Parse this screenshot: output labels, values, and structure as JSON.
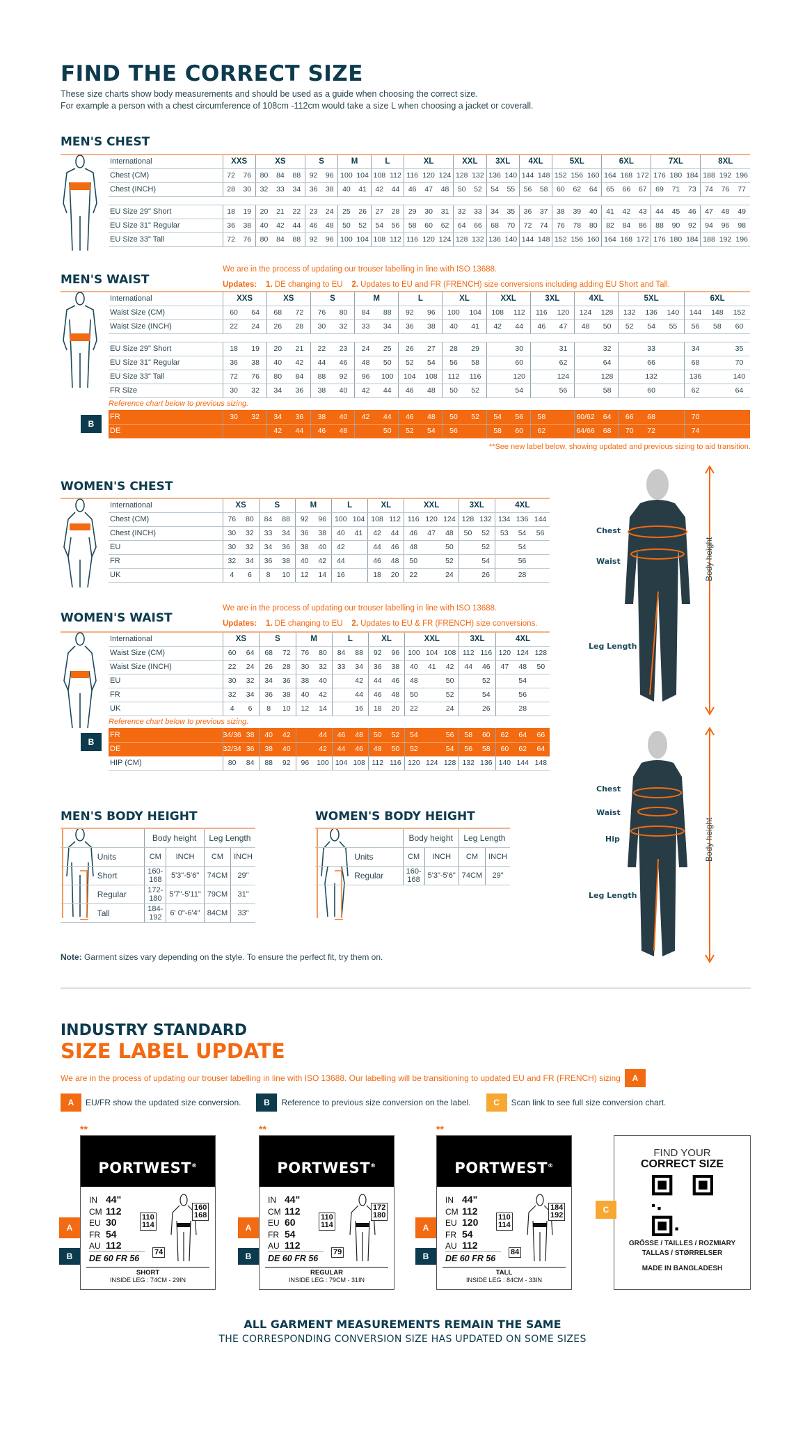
{
  "header": {
    "title": "FIND THE CORRECT SIZE",
    "intro_1": "These size charts show body measurements and should be used as a guide when choosing the correct size.",
    "intro_2": "For example a person with a chest circumference of 108cm -112cm would take a size L when choosing a jacket or coverall."
  },
  "colors": {
    "accent": "#f26a12",
    "navy": "#0d3b4e",
    "badge_c": "#f7a833"
  },
  "mens_chest": {
    "title": "MEN'S CHEST",
    "sizes": [
      {
        "label": "XXS",
        "span": 2
      },
      {
        "label": "XS",
        "span": 3
      },
      {
        "label": "S",
        "span": 2
      },
      {
        "label": "M",
        "span": 2
      },
      {
        "label": "L",
        "span": 2
      },
      {
        "label": "XL",
        "span": 3
      },
      {
        "label": "XXL",
        "span": 2
      },
      {
        "label": "3XL",
        "span": 2
      },
      {
        "label": "4XL",
        "span": 2
      },
      {
        "label": "5XL",
        "span": 3
      },
      {
        "label": "6XL",
        "span": 3
      },
      {
        "label": "7XL",
        "span": 3
      },
      {
        "label": "8XL",
        "span": 3
      }
    ],
    "header_label": "International",
    "rows": [
      {
        "label": "Chest (CM)",
        "cells": [
          "72",
          "76",
          "80",
          "84",
          "88",
          "92",
          "96",
          "100",
          "104",
          "108",
          "112",
          "116",
          "120",
          "124",
          "128",
          "132",
          "136",
          "140",
          "144",
          "148",
          "152",
          "156",
          "160",
          "164",
          "168",
          "172",
          "176",
          "180",
          "184",
          "188",
          "192",
          "196"
        ]
      },
      {
        "label": "Chest (INCH)",
        "cells": [
          "28",
          "30",
          "32",
          "33",
          "34",
          "36",
          "38",
          "40",
          "41",
          "42",
          "44",
          "46",
          "47",
          "48",
          "50",
          "52",
          "54",
          "55",
          "56",
          "58",
          "60",
          "62",
          "64",
          "65",
          "66",
          "67",
          "69",
          "71",
          "73",
          "74",
          "76",
          "77"
        ]
      },
      {
        "type": "spacer"
      },
      {
        "label": "EU Size 29\" Short",
        "cells": [
          "18",
          "19",
          "20",
          "21",
          "22",
          "23",
          "24",
          "25",
          "26",
          "27",
          "28",
          "29",
          "30",
          "31",
          "32",
          "33",
          "34",
          "35",
          "36",
          "37",
          "38",
          "39",
          "40",
          "41",
          "42",
          "43",
          "44",
          "45",
          "46",
          "47",
          "48",
          "49"
        ]
      },
      {
        "label": "EU Size 31\" Regular",
        "cells": [
          "36",
          "38",
          "40",
          "42",
          "44",
          "46",
          "48",
          "50",
          "52",
          "54",
          "56",
          "58",
          "60",
          "62",
          "64",
          "66",
          "68",
          "70",
          "72",
          "74",
          "76",
          "78",
          "80",
          "82",
          "84",
          "86",
          "88",
          "90",
          "92",
          "94",
          "96",
          "98"
        ]
      },
      {
        "label": "EU Size 33\" Tall",
        "cells": [
          "72",
          "76",
          "80",
          "84",
          "88",
          "92",
          "96",
          "100",
          "104",
          "108",
          "112",
          "116",
          "120",
          "124",
          "128",
          "132",
          "136",
          "140",
          "144",
          "148",
          "152",
          "156",
          "160",
          "164",
          "168",
          "172",
          "176",
          "180",
          "184",
          "188",
          "192",
          "196"
        ]
      }
    ]
  },
  "mens_waist": {
    "title": "MEN'S WAIST",
    "note": "We are in the process of updating our trouser labelling in line with ISO 13688.",
    "updates_label": "Updates:",
    "update_1_num": "1.",
    "update_1": "DE changing to EU",
    "update_2_num": "2.",
    "update_2": "Updates to EU and FR (FRENCH) size conversions including adding EU Short and Tall.",
    "sizes": [
      {
        "label": "XXS",
        "span": 2
      },
      {
        "label": "XS",
        "span": 2
      },
      {
        "label": "S",
        "span": 2
      },
      {
        "label": "M",
        "span": 2
      },
      {
        "label": "L",
        "span": 2
      },
      {
        "label": "XL",
        "span": 2
      },
      {
        "label": "XXL",
        "span": 2
      },
      {
        "label": "3XL",
        "span": 2
      },
      {
        "label": "4XL",
        "span": 2
      },
      {
        "label": "5XL",
        "span": 3
      },
      {
        "label": "6XL",
        "span": 3
      }
    ],
    "header_label": "International",
    "rows": [
      {
        "label": "Waist Size (CM)",
        "cells": [
          "60",
          "64",
          "68",
          "72",
          "76",
          "80",
          "84",
          "88",
          "92",
          "96",
          "100",
          "104",
          "108",
          "112",
          "116",
          "120",
          "124",
          "128",
          "132",
          "136",
          "140",
          "144",
          "148",
          "152"
        ]
      },
      {
        "label": "Waist Size (INCH)",
        "cells": [
          "22",
          "24",
          "26",
          "28",
          "30",
          "32",
          "33",
          "34",
          "36",
          "38",
          "40",
          "41",
          "42",
          "44",
          "46",
          "47",
          "48",
          "50",
          "52",
          "54",
          "55",
          "56",
          "58",
          "60"
        ]
      },
      {
        "type": "spacer"
      },
      {
        "label": "EU Size 29\" Short",
        "cells": [
          "18",
          "19",
          "20",
          "21",
          "22",
          "23",
          "24",
          "25",
          "26",
          "27",
          "28",
          "29",
          "",
          "30",
          "",
          "31",
          "",
          "32",
          "",
          "33",
          "",
          "34",
          "",
          "35"
        ]
      },
      {
        "label": "EU Size 31\" Regular",
        "cells": [
          "36",
          "38",
          "40",
          "42",
          "44",
          "46",
          "48",
          "50",
          "52",
          "54",
          "56",
          "58",
          "",
          "60",
          "",
          "62",
          "",
          "64",
          "",
          "66",
          "",
          "68",
          "",
          "70"
        ]
      },
      {
        "label": "EU Size 33\" Tall",
        "cells": [
          "72",
          "76",
          "80",
          "84",
          "88",
          "92",
          "96",
          "100",
          "104",
          "108",
          "112",
          "116",
          "",
          "120",
          "",
          "124",
          "",
          "128",
          "",
          "132",
          "",
          "136",
          "",
          "140"
        ]
      },
      {
        "label": "FR Size",
        "cells": [
          "30",
          "32",
          "34",
          "36",
          "38",
          "40",
          "42",
          "44",
          "46",
          "48",
          "50",
          "52",
          "",
          "54",
          "",
          "56",
          "",
          "58",
          "",
          "60",
          "",
          "62",
          "",
          "64"
        ]
      },
      {
        "type": "caption",
        "label": "Reference chart below to previous sizing."
      },
      {
        "type": "ref",
        "badge": "B",
        "label": "FR",
        "cells": [
          "30",
          "32",
          "34",
          "36",
          "38",
          "40",
          "42",
          "44",
          "46",
          "48",
          "50",
          "52",
          "54",
          "56",
          "58",
          "",
          "60/62",
          "64",
          "66",
          "68",
          "",
          "70",
          "",
          ""
        ]
      },
      {
        "type": "ref",
        "label": "DE",
        "cells": [
          "",
          "",
          "42",
          "44",
          "46",
          "48",
          "",
          "50",
          "52",
          "54",
          "56",
          "",
          "58",
          "60",
          "62",
          "",
          "64/66",
          "68",
          "70",
          "72",
          "",
          "74",
          "",
          ""
        ]
      }
    ],
    "footnote": "**See new label below, showing updated and previous sizing to aid transition."
  },
  "womens_chest": {
    "title": "WOMEN'S CHEST",
    "sizes": [
      {
        "label": "XS",
        "span": 2
      },
      {
        "label": "S",
        "span": 2
      },
      {
        "label": "M",
        "span": 2
      },
      {
        "label": "L",
        "span": 2
      },
      {
        "label": "XL",
        "span": 2
      },
      {
        "label": "XXL",
        "span": 3
      },
      {
        "label": "3XL",
        "span": 2
      },
      {
        "label": "4XL",
        "span": 3
      }
    ],
    "header_label": "International",
    "rows": [
      {
        "label": "Chest (CM)",
        "cells": [
          "76",
          "80",
          "84",
          "88",
          "92",
          "96",
          "100",
          "104",
          "108",
          "112",
          "116",
          "120",
          "124",
          "128",
          "132",
          "134",
          "136",
          "144"
        ]
      },
      {
        "label": "Chest (INCH)",
        "cells": [
          "30",
          "32",
          "33",
          "34",
          "36",
          "38",
          "40",
          "41",
          "42",
          "44",
          "46",
          "47",
          "48",
          "50",
          "52",
          "53",
          "54",
          "56"
        ]
      },
      {
        "label": "EU",
        "cells": [
          "30",
          "32",
          "34",
          "36",
          "38",
          "40",
          "42",
          "",
          "44",
          "46",
          "48",
          "",
          "50",
          "",
          "52",
          "",
          "54",
          ""
        ]
      },
      {
        "label": "FR",
        "cells": [
          "32",
          "34",
          "36",
          "38",
          "40",
          "42",
          "44",
          "",
          "46",
          "48",
          "50",
          "",
          "52",
          "",
          "54",
          "",
          "56",
          ""
        ]
      },
      {
        "label": "UK",
        "cells": [
          "4",
          "6",
          "8",
          "10",
          "12",
          "14",
          "16",
          "",
          "18",
          "20",
          "22",
          "",
          "24",
          "",
          "26",
          "",
          "28",
          ""
        ]
      }
    ]
  },
  "womens_waist": {
    "title": "WOMEN'S WAIST",
    "note": "We are in the process of updating our trouser labelling in line with ISO 13688.",
    "updates_label": "Updates:",
    "update_1_num": "1.",
    "update_1": "DE changing to EU",
    "update_2_num": "2.",
    "update_2": "Updates to EU & FR (FRENCH) size conversions.",
    "sizes": [
      {
        "label": "XS",
        "span": 2
      },
      {
        "label": "S",
        "span": 2
      },
      {
        "label": "M",
        "span": 2
      },
      {
        "label": "L",
        "span": 2
      },
      {
        "label": "XL",
        "span": 2
      },
      {
        "label": "XXL",
        "span": 3
      },
      {
        "label": "3XL",
        "span": 2
      },
      {
        "label": "4XL",
        "span": 3
      }
    ],
    "header_label": "International",
    "rows": [
      {
        "label": "Waist Size (CM)",
        "cells": [
          "60",
          "64",
          "68",
          "72",
          "76",
          "80",
          "84",
          "88",
          "92",
          "96",
          "100",
          "104",
          "108",
          "112",
          "116",
          "120",
          "124",
          "128"
        ]
      },
      {
        "label": "Waist Size (INCH)",
        "cells": [
          "22",
          "24",
          "26",
          "28",
          "30",
          "32",
          "33",
          "34",
          "36",
          "38",
          "40",
          "41",
          "42",
          "44",
          "46",
          "47",
          "48",
          "50"
        ]
      },
      {
        "label": "EU",
        "cells": [
          "30",
          "32",
          "34",
          "36",
          "38",
          "40",
          "",
          "42",
          "44",
          "46",
          "48",
          "",
          "50",
          "",
          "52",
          "",
          "54",
          ""
        ]
      },
      {
        "label": "FR",
        "cells": [
          "32",
          "34",
          "36",
          "38",
          "40",
          "42",
          "",
          "44",
          "46",
          "48",
          "50",
          "",
          "52",
          "",
          "54",
          "",
          "56",
          ""
        ]
      },
      {
        "label": "UK",
        "cells": [
          "4",
          "6",
          "8",
          "10",
          "12",
          "14",
          "",
          "16",
          "18",
          "20",
          "22",
          "",
          "24",
          "",
          "26",
          "",
          "28",
          ""
        ]
      },
      {
        "type": "caption",
        "label": "Reference chart below to previous sizing."
      },
      {
        "type": "ref",
        "badge": "B",
        "label": "FR",
        "cells": [
          "34/36",
          "38",
          "40",
          "42",
          "",
          "44",
          "46",
          "48",
          "50",
          "52",
          "54",
          "",
          "56",
          "58",
          "60",
          "62",
          "64",
          "66"
        ]
      },
      {
        "type": "ref",
        "label": "DE",
        "cells": [
          "32/34",
          "36",
          "38",
          "40",
          "",
          "42",
          "44",
          "46",
          "48",
          "50",
          "52",
          "",
          "54",
          "56",
          "58",
          "60",
          "62",
          "64"
        ]
      },
      {
        "label": "HIP (CM)",
        "cells": [
          "80",
          "84",
          "88",
          "92",
          "96",
          "100",
          "104",
          "108",
          "112",
          "116",
          "120",
          "124",
          "128",
          "132",
          "136",
          "140",
          "144",
          "148"
        ]
      }
    ]
  },
  "mens_height": {
    "title": "MEN'S BODY HEIGHT",
    "group_1": "Body height",
    "group_2": "Leg Length",
    "units_label": "Units",
    "units": [
      "CM",
      "INCH",
      "CM",
      "INCH"
    ],
    "rows": [
      {
        "label": "Short",
        "cells": [
          "160-168",
          "5'3\"-5'6\"",
          "74CM",
          "29\""
        ]
      },
      {
        "label": "Regular",
        "cells": [
          "172-180",
          "5'7\"-5'11\"",
          "79CM",
          "31\""
        ]
      },
      {
        "label": "Tall",
        "cells": [
          "184-192",
          "6' 0\"-6'4\"",
          "84CM",
          "33\""
        ]
      }
    ]
  },
  "womens_height": {
    "title": "WOMEN'S BODY HEIGHT",
    "group_1": "Body height",
    "group_2": "Leg Length",
    "units_label": "Units",
    "units": [
      "CM",
      "INCH",
      "CM",
      "INCH"
    ],
    "rows": [
      {
        "label": "Regular",
        "cells": [
          "160-168",
          "5'3\"-5'6\"",
          "74CM",
          "29\""
        ]
      }
    ]
  },
  "photos": {
    "man": {
      "chest": "Chest",
      "waist": "Waist",
      "leg": "Leg Length",
      "height": "Body height"
    },
    "woman": {
      "chest": "Chest",
      "waist": "Waist",
      "hip": "Hip",
      "leg": "Leg Length",
      "height": "Body height"
    }
  },
  "note": {
    "bold": "Note:",
    "text": " Garment sizes vary depending on the style. To ensure the perfect fit, try them on."
  },
  "label_update": {
    "title_1": "INDUSTRY STANDARD",
    "title_2": "SIZE LABEL UPDATE",
    "intro": "We are in the process of updating our trouser labelling in line with ISO 13688. Our labelling will be transitioning to updated EU and FR (FRENCH) sizing",
    "intro_badge": "A",
    "legend": [
      {
        "badge": "A",
        "text": "EU/FR show the updated size conversion."
      },
      {
        "badge": "B",
        "text": "Reference to previous size conversion on the label."
      },
      {
        "badge": "C",
        "text": "Scan link to see full size conversion chart."
      }
    ],
    "labels": [
      {
        "stars": "**",
        "brand": "PORTWEST",
        "in": "44\"",
        "cm": "112",
        "eu": "30",
        "fr": "54",
        "au": "112",
        "de_line": "DE 60 FR 56",
        "chest_tag": "110\n114",
        "height_tag": "160\n168",
        "leg_tag": "74",
        "fit": "SHORT",
        "inside_leg": "INSIDE LEG : 74CM - 29IN",
        "badge_a": "A",
        "badge_b": "B"
      },
      {
        "stars": "**",
        "brand": "PORTWEST",
        "in": "44\"",
        "cm": "112",
        "eu": "60",
        "fr": "54",
        "au": "112",
        "de_line": "DE 60 FR 56",
        "chest_tag": "110\n114",
        "height_tag": "172\n180",
        "leg_tag": "79",
        "fit": "REGULAR",
        "inside_leg": "INSIDE LEG : 79CM - 31IN",
        "badge_a": "A",
        "badge_b": "B"
      },
      {
        "stars": "**",
        "brand": "PORTWEST",
        "in": "44\"",
        "cm": "112",
        "eu": "120",
        "fr": "54",
        "au": "112",
        "de_line": "DE 60 FR 56",
        "chest_tag": "110\n114",
        "height_tag": "184\n192",
        "leg_tag": "84",
        "fit": "TALL",
        "inside_leg": "INSIDE LEG : 84CM - 33IN",
        "badge_a": "A",
        "badge_b": "B"
      }
    ],
    "value_keys": [
      "IN",
      "CM",
      "EU",
      "FR",
      "AU"
    ],
    "qr": {
      "badge": "C",
      "line_1": "FIND YOUR",
      "line_2": "CORRECT SIZE",
      "languages_1": "GRÖSSE / TAILLES / ROZMIARY",
      "languages_2": "TALLAS / STØRRELSER",
      "made_in": "MADE IN BANGLADESH"
    }
  },
  "footer": {
    "line_1": "ALL GARMENT MEASUREMENTS REMAIN THE SAME",
    "line_2": "THE CORRESPONDING CONVERSION SIZE HAS UPDATED ON SOME SIZES"
  }
}
